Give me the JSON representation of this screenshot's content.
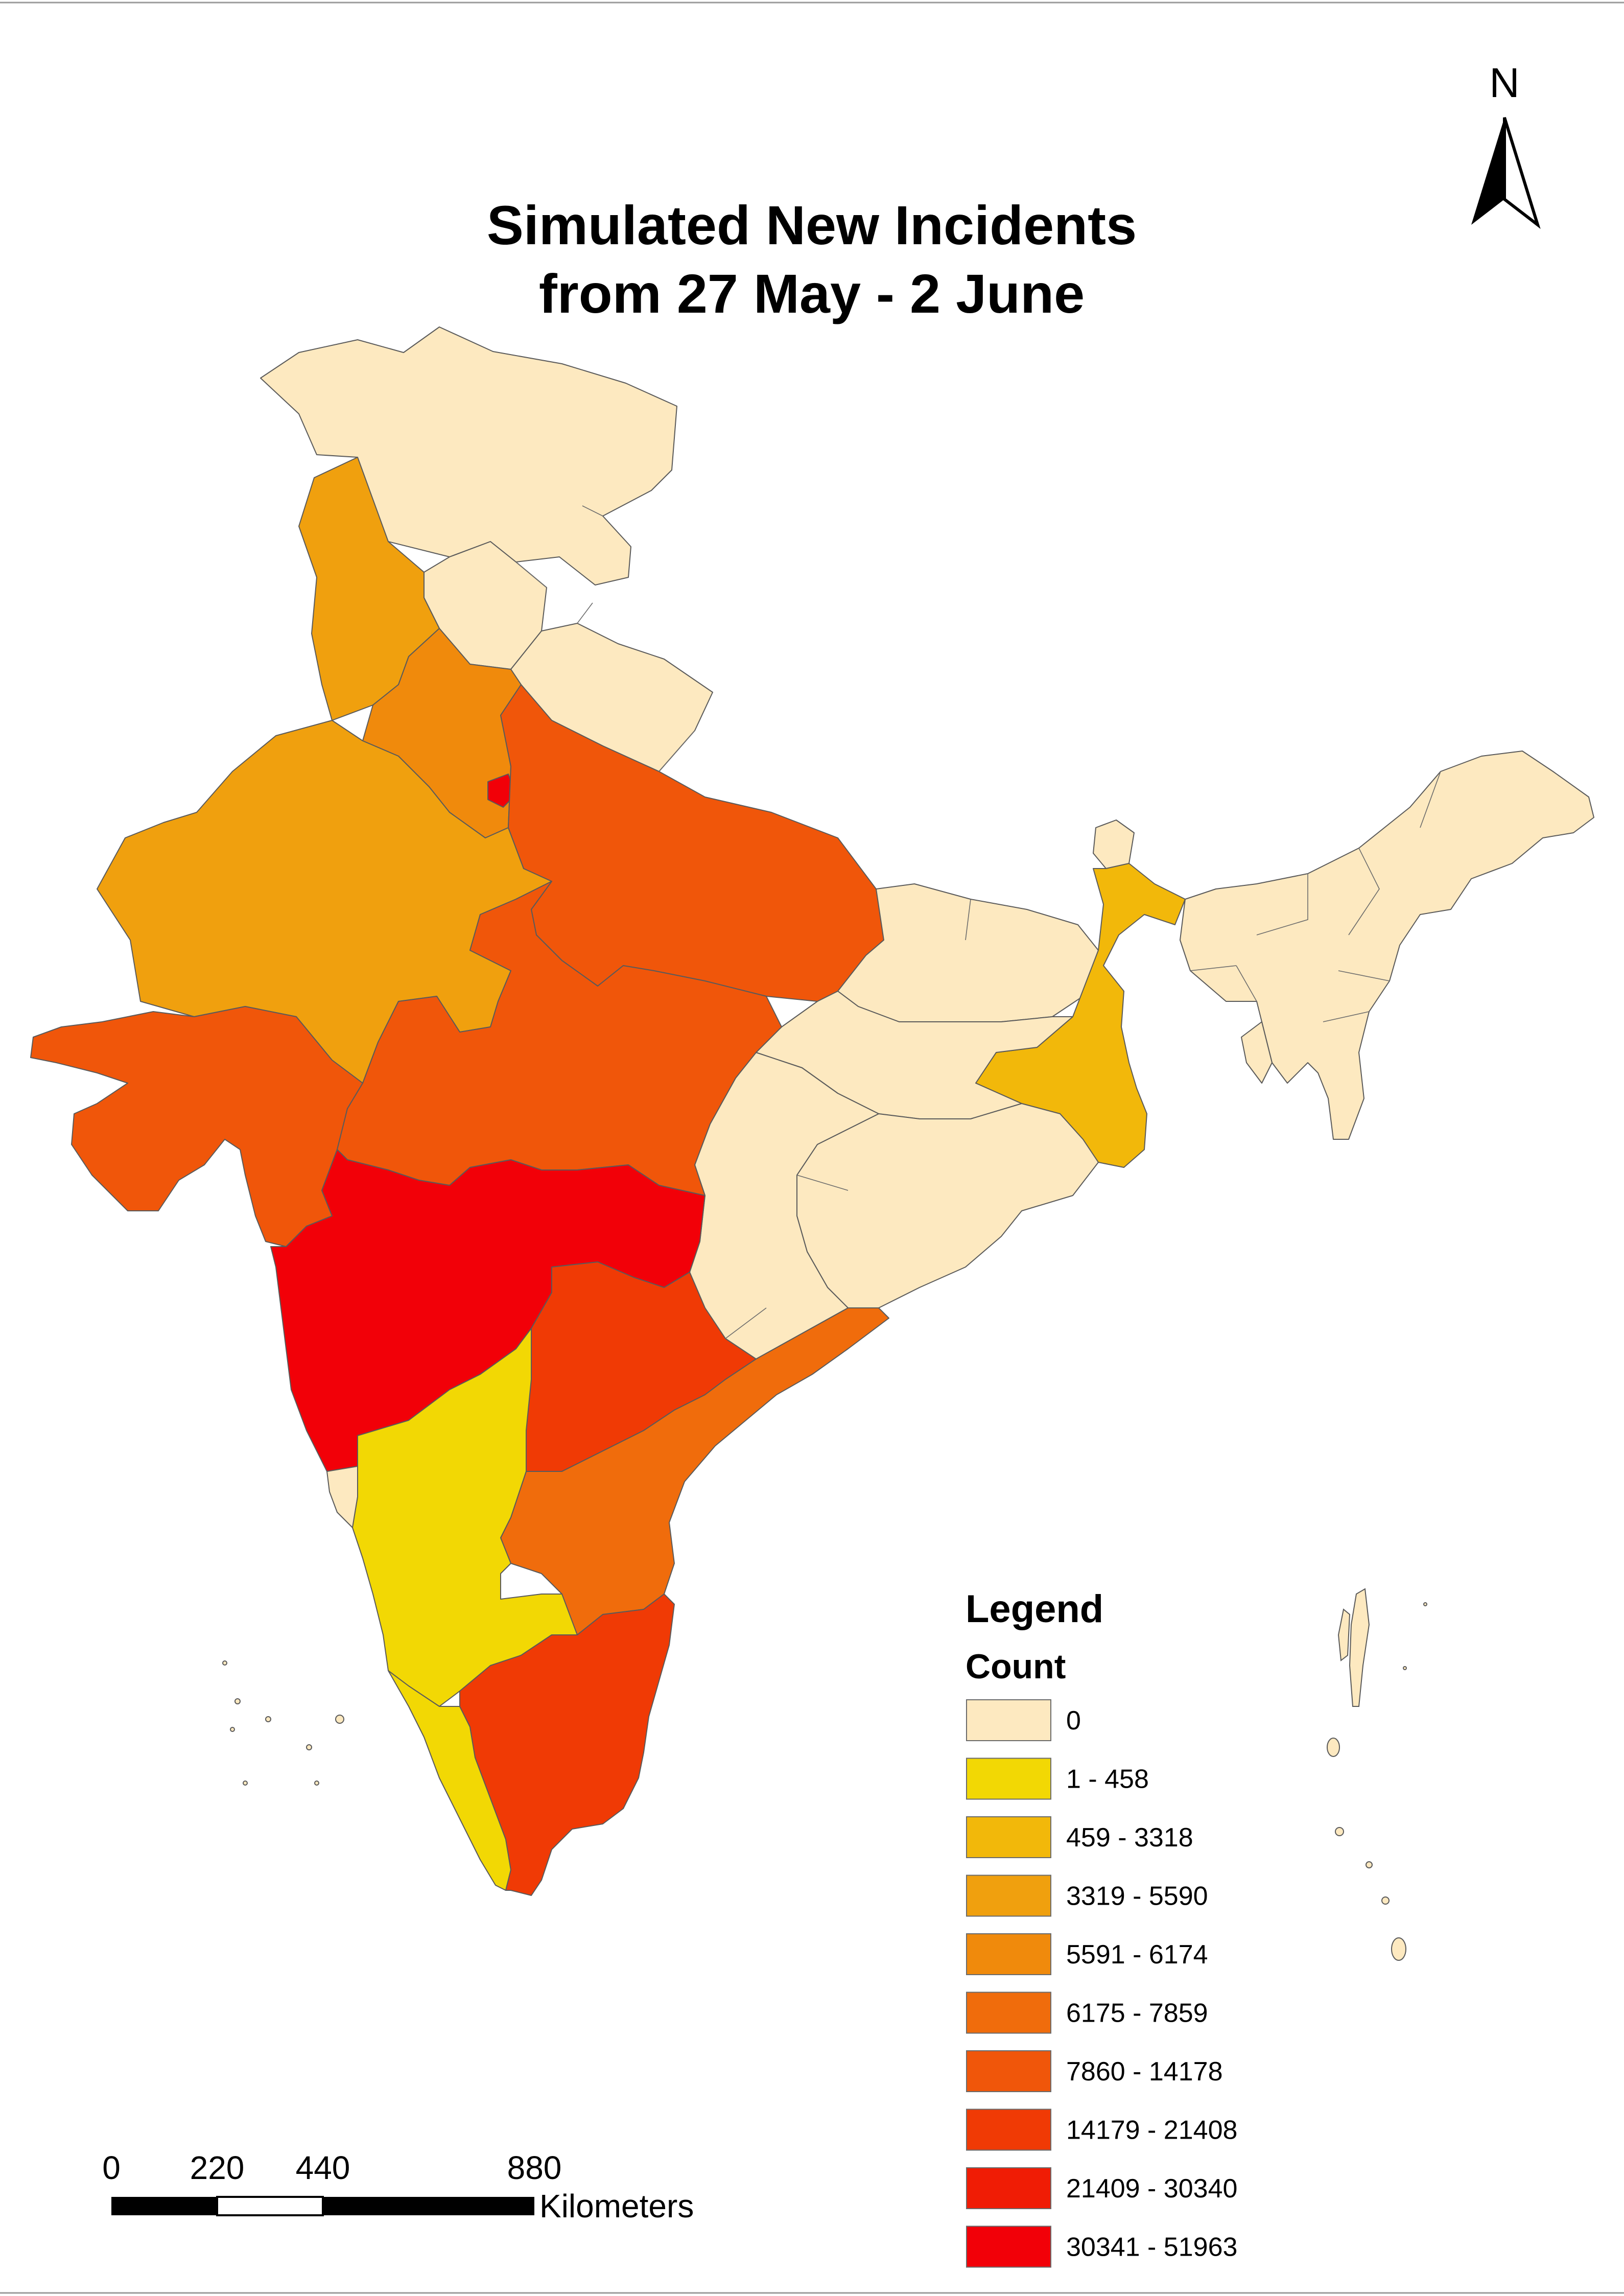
{
  "title": {
    "line1": "Simulated New Incidents",
    "line2": "from 27 May - 2 June"
  },
  "north_arrow": {
    "label": "N"
  },
  "legend": {
    "heading": "Legend",
    "field": "Count",
    "classes": [
      {
        "label": "0",
        "color": "#fde9c0"
      },
      {
        "label": "1 - 458",
        "color": "#f2d804"
      },
      {
        "label": "459 - 3318",
        "color": "#f2b80a"
      },
      {
        "label": "3319 - 5590",
        "color": "#f0a00e"
      },
      {
        "label": "5591 - 6174",
        "color": "#f08a0c"
      },
      {
        "label": "6175 - 7859",
        "color": "#f06c0c"
      },
      {
        "label": "7860 - 14178",
        "color": "#f0560a"
      },
      {
        "label": "14179 - 21408",
        "color": "#f03a05"
      },
      {
        "label": "21409 - 30340",
        "color": "#f01c05"
      },
      {
        "label": "30341 - 51963",
        "color": "#f20008"
      }
    ]
  },
  "scale_bar": {
    "ticks": [
      "0",
      "220",
      "440",
      "880"
    ],
    "unit": "Kilometers"
  }
}
